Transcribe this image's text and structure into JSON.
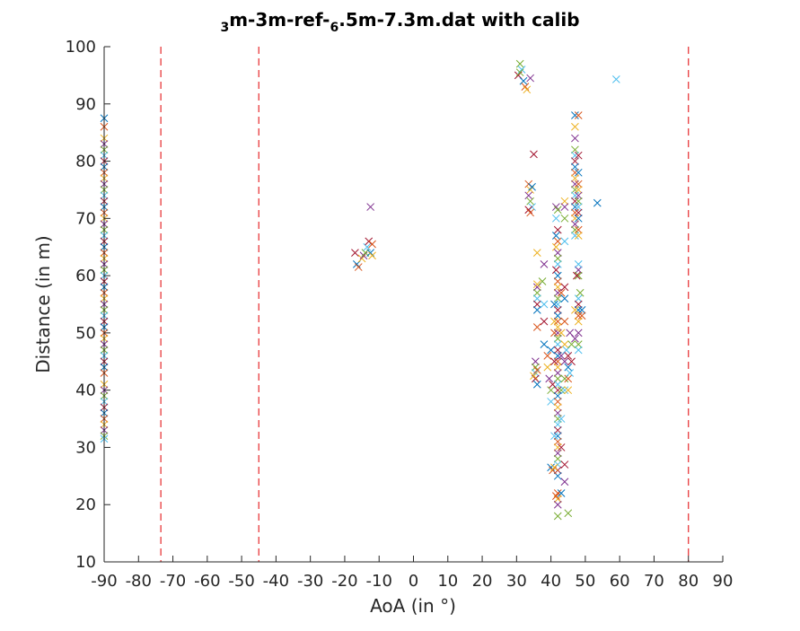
{
  "chart_data": {
    "type": "scatter",
    "title_parts": [
      {
        "text": "3",
        "sub": true
      },
      {
        "text": "m-3m-ref-",
        "sub": false
      },
      {
        "text": "6",
        "sub": true
      },
      {
        "text": ".5m-7.3m.dat with calib",
        "sub": false
      }
    ],
    "xlabel": "AoA (in °)",
    "ylabel": "Distance (in m)",
    "xlim": [
      -90,
      90
    ],
    "ylim": [
      10,
      100
    ],
    "x_ticks": [
      -90,
      -80,
      -70,
      -60,
      -50,
      -40,
      -30,
      -20,
      -10,
      0,
      10,
      20,
      30,
      40,
      50,
      60,
      70,
      80,
      90
    ],
    "y_ticks": [
      10,
      20,
      30,
      40,
      50,
      60,
      70,
      80,
      90,
      100
    ],
    "marker": "x",
    "grid": false,
    "series_colors": [
      "#0072BD",
      "#D95319",
      "#EDB120",
      "#7E2F8E",
      "#77AC30",
      "#4DBEEE",
      "#A2142F"
    ],
    "reference_lines": {
      "x": [
        -73.5,
        -45,
        80
      ],
      "color": "#E8393B",
      "style": "dashed"
    },
    "points": [
      [
        -90,
        87.5
      ],
      [
        -90,
        86
      ],
      [
        -90,
        84
      ],
      [
        -90,
        83
      ],
      [
        -90,
        82
      ],
      [
        -90,
        81
      ],
      [
        -90,
        80
      ],
      [
        -90,
        79
      ],
      [
        -90,
        78
      ],
      [
        -90,
        77
      ],
      [
        -90,
        76
      ],
      [
        -90,
        75
      ],
      [
        -90,
        74
      ],
      [
        -90,
        73
      ],
      [
        -90,
        72
      ],
      [
        -90,
        71
      ],
      [
        -90,
        70
      ],
      [
        -90,
        69
      ],
      [
        -90,
        68
      ],
      [
        -90,
        67
      ],
      [
        -90,
        66
      ],
      [
        -90,
        65
      ],
      [
        -90,
        64
      ],
      [
        -90,
        63
      ],
      [
        -90,
        62
      ],
      [
        -90,
        61
      ],
      [
        -90,
        60
      ],
      [
        -90,
        59
      ],
      [
        -90,
        58
      ],
      [
        -90,
        57
      ],
      [
        -90,
        56
      ],
      [
        -90,
        55
      ],
      [
        -90,
        54
      ],
      [
        -90,
        53
      ],
      [
        -90,
        52
      ],
      [
        -90,
        51
      ],
      [
        -90,
        50
      ],
      [
        -90,
        49
      ],
      [
        -90,
        48
      ],
      [
        -90,
        47
      ],
      [
        -90,
        46
      ],
      [
        -90,
        45
      ],
      [
        -90,
        44
      ],
      [
        -90,
        43
      ],
      [
        -90,
        41
      ],
      [
        -90,
        40
      ],
      [
        -90,
        39
      ],
      [
        -90,
        38
      ],
      [
        -90,
        37
      ],
      [
        -90,
        36
      ],
      [
        -90,
        35
      ],
      [
        -90,
        34
      ],
      [
        -90,
        33
      ],
      [
        -90,
        32
      ],
      [
        -90,
        31.5
      ],
      [
        -17,
        64
      ],
      [
        -16.5,
        62
      ],
      [
        -16,
        61.5
      ],
      [
        -15,
        63
      ],
      [
        -14.5,
        63.5
      ],
      [
        -14,
        64
      ],
      [
        -13.5,
        65
      ],
      [
        -13,
        66
      ],
      [
        -12.5,
        64
      ],
      [
        -12,
        65.5
      ],
      [
        -12,
        63.5
      ],
      [
        -12.5,
        72
      ],
      [
        31,
        97
      ],
      [
        31.5,
        96
      ],
      [
        30.5,
        95
      ],
      [
        32,
        94
      ],
      [
        32.5,
        93
      ],
      [
        33,
        92.5
      ],
      [
        34,
        94.5
      ],
      [
        31,
        95.5
      ],
      [
        59,
        94.3
      ],
      [
        35,
        81.2
      ],
      [
        53.5,
        72.7
      ],
      [
        33.5,
        76
      ],
      [
        34,
        75
      ],
      [
        33.5,
        74
      ],
      [
        34,
        73
      ],
      [
        34.5,
        72
      ],
      [
        33.5,
        71.5
      ],
      [
        34.5,
        75.5
      ],
      [
        34,
        71
      ],
      [
        36,
        64
      ],
      [
        36,
        58
      ],
      [
        36,
        57
      ],
      [
        36,
        56
      ],
      [
        36,
        55
      ],
      [
        36,
        54
      ],
      [
        36,
        51
      ],
      [
        36,
        58.5
      ],
      [
        35.5,
        45
      ],
      [
        35.5,
        44
      ],
      [
        35.5,
        43
      ],
      [
        35.5,
        42
      ],
      [
        36,
        41
      ],
      [
        36,
        43.5
      ],
      [
        35,
        42.5
      ],
      [
        38,
        62
      ],
      [
        37.5,
        59
      ],
      [
        38,
        55
      ],
      [
        38,
        52
      ],
      [
        38,
        48
      ],
      [
        39,
        46
      ],
      [
        39,
        44
      ],
      [
        39.5,
        42
      ],
      [
        40,
        40
      ],
      [
        40,
        38
      ],
      [
        40.5,
        41
      ],
      [
        40,
        47
      ],
      [
        41,
        50
      ],
      [
        41,
        52
      ],
      [
        41.5,
        72
      ],
      [
        42,
        71.5
      ],
      [
        41.5,
        70
      ],
      [
        42,
        68
      ],
      [
        41.5,
        67
      ],
      [
        42,
        66
      ],
      [
        41.5,
        65
      ],
      [
        42,
        64
      ],
      [
        42,
        63
      ],
      [
        42,
        62
      ],
      [
        41.5,
        61
      ],
      [
        42,
        60
      ],
      [
        42,
        59
      ],
      [
        42,
        58
      ],
      [
        42,
        57
      ],
      [
        42,
        56
      ],
      [
        42,
        55
      ],
      [
        42,
        54
      ],
      [
        42,
        53
      ],
      [
        42,
        52
      ],
      [
        42,
        51
      ],
      [
        42,
        50
      ],
      [
        42,
        49
      ],
      [
        42,
        48
      ],
      [
        42,
        47
      ],
      [
        42,
        46
      ],
      [
        42,
        45
      ],
      [
        42,
        44
      ],
      [
        42,
        43
      ],
      [
        42,
        42
      ],
      [
        42,
        41
      ],
      [
        42,
        40
      ],
      [
        42,
        39
      ],
      [
        42,
        38
      ],
      [
        42,
        37
      ],
      [
        42,
        36
      ],
      [
        42,
        35
      ],
      [
        42,
        34
      ],
      [
        42,
        33
      ],
      [
        42,
        32
      ],
      [
        42,
        31
      ],
      [
        42,
        30
      ],
      [
        42,
        29
      ],
      [
        42,
        28
      ],
      [
        42,
        27
      ],
      [
        42,
        26
      ],
      [
        42,
        25
      ],
      [
        42,
        22
      ],
      [
        42,
        21
      ],
      [
        42,
        20
      ],
      [
        42,
        18
      ],
      [
        41,
        32
      ],
      [
        41,
        45
      ],
      [
        41,
        55
      ],
      [
        43,
        57
      ],
      [
        43,
        50
      ],
      [
        43,
        46
      ],
      [
        43,
        40
      ],
      [
        43,
        35
      ],
      [
        43,
        30
      ],
      [
        43,
        22
      ],
      [
        41.5,
        21.5
      ],
      [
        44,
        73
      ],
      [
        44,
        72
      ],
      [
        44,
        70
      ],
      [
        44,
        66
      ],
      [
        44,
        58
      ],
      [
        44,
        56
      ],
      [
        44,
        52
      ],
      [
        44,
        48
      ],
      [
        44,
        45
      ],
      [
        44,
        42
      ],
      [
        44,
        40
      ],
      [
        44,
        27
      ],
      [
        40,
        26.5
      ],
      [
        40.5,
        26
      ],
      [
        41,
        26.5
      ],
      [
        44,
        24
      ],
      [
        45,
        18.5
      ],
      [
        44.5,
        47
      ],
      [
        45,
        46
      ],
      [
        45,
        44
      ],
      [
        45,
        42
      ],
      [
        45,
        40
      ],
      [
        45.5,
        50
      ],
      [
        46,
        48
      ],
      [
        45.5,
        43
      ],
      [
        46,
        45
      ],
      [
        47,
        88
      ],
      [
        48,
        88
      ],
      [
        47,
        86
      ],
      [
        47,
        84
      ],
      [
        47,
        82
      ],
      [
        47,
        81
      ],
      [
        47,
        80
      ],
      [
        47,
        79
      ],
      [
        47,
        78
      ],
      [
        47,
        77
      ],
      [
        47,
        76
      ],
      [
        47,
        75
      ],
      [
        47,
        74
      ],
      [
        47,
        73
      ],
      [
        47,
        72
      ],
      [
        47,
        71
      ],
      [
        47,
        70
      ],
      [
        47,
        69
      ],
      [
        47,
        68
      ],
      [
        47,
        67
      ],
      [
        48,
        81
      ],
      [
        48,
        78
      ],
      [
        48,
        76
      ],
      [
        48,
        75
      ],
      [
        48,
        74
      ],
      [
        48,
        73
      ],
      [
        48,
        72
      ],
      [
        48,
        71
      ],
      [
        48,
        70
      ],
      [
        48,
        68
      ],
      [
        48,
        67
      ],
      [
        48,
        61
      ],
      [
        48,
        60
      ],
      [
        48,
        56
      ],
      [
        48,
        55
      ],
      [
        48,
        54
      ],
      [
        48,
        53
      ],
      [
        48,
        52
      ],
      [
        48,
        50
      ],
      [
        48,
        48
      ],
      [
        48,
        47
      ],
      [
        47.5,
        60
      ],
      [
        49,
        54
      ],
      [
        49,
        53
      ],
      [
        47,
        54
      ],
      [
        47,
        49
      ],
      [
        48.5,
        57
      ],
      [
        48,
        62
      ]
    ]
  }
}
